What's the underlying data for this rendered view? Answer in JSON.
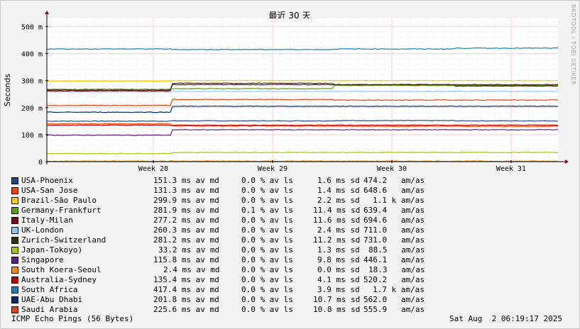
{
  "chart_data": {
    "type": "line",
    "title": "最近 30 天",
    "ylabel": "Seconds",
    "y_ticks": [
      {
        "value": 0,
        "label": "0"
      },
      {
        "value": 100,
        "label": "100 m"
      },
      {
        "value": 200,
        "label": "200 m"
      },
      {
        "value": 300,
        "label": "300 m"
      },
      {
        "value": 400,
        "label": "400 m"
      },
      {
        "value": 500,
        "label": "500 m"
      }
    ],
    "ylim": [
      0,
      530
    ],
    "x_ticks": [
      "Week 28",
      "Week 29",
      "Week 30",
      "Week 31"
    ],
    "grid": true,
    "series": [
      {
        "name": "USA-Phoenix",
        "color": "#1f4a8a",
        "levels": [
          150,
          151,
          152,
          151
        ],
        "median": "151.3 ms av md",
        "loss": "0.0 % av ls",
        "sd": "1.6 ms sd",
        "ratio": "474.2   am/as"
      },
      {
        "name": "USA-San Jose",
        "color": "#ff4000",
        "levels": [
          140,
          132,
          131,
          131
        ],
        "median": "131.3 ms av md",
        "loss": "0.0 % av ls",
        "sd": "1.4 ms sd",
        "ratio": "648.6   am/as"
      },
      {
        "name": "Brazil-São Paulo",
        "color": "#ffd000",
        "levels": [
          298,
          300,
          300,
          300
        ],
        "median": "299.9 ms av md",
        "loss": "0.0 % av ls",
        "sd": "2.2 ms sd",
        "ratio": "1.1 k am/as"
      },
      {
        "name": "Germany-Frankfurt",
        "color": "#58a000",
        "levels": [
          268,
          270,
          282,
          282
        ],
        "median": "281.9 ms av md",
        "loss": "0.1 % av ls",
        "sd": "11.4 ms sd",
        "ratio": "639.4   am/as"
      },
      {
        "name": "Italy-Milan",
        "color": "#800020",
        "levels": [
          262,
          285,
          285,
          280
        ],
        "median": "277.2 ms av md",
        "loss": "0.0 % av ls",
        "sd": "11.6 ms sd",
        "ratio": "694.6   am/as"
      },
      {
        "name": "UK-London",
        "color": "#8cc8ff",
        "levels": [
          258,
          260,
          260,
          260
        ],
        "median": "260.3 ms av md",
        "loss": "0.0 % av ls",
        "sd": "2.4 ms sd",
        "ratio": "711.0   am/as"
      },
      {
        "name": "Zurich-Switzerland",
        "color": "#303000",
        "levels": [
          265,
          290,
          285,
          285
        ],
        "median": "281.2 ms av md",
        "loss": "0.0 % av ls",
        "sd": "11.2 ms sd",
        "ratio": "731.0   am/as"
      },
      {
        "name": "Japan-Tokoyo)",
        "color": "#a8c800",
        "levels": [
          30,
          34,
          34,
          34
        ],
        "median": "33.2 ms av md",
        "loss": "0.0 % av ls",
        "sd": "1.3 ms sd",
        "ratio": "88.5   am/as"
      },
      {
        "name": "Singapore",
        "color": "#602080",
        "levels": [
          98,
          118,
          118,
          118
        ],
        "median": "115.8 ms av md",
        "loss": "0.0 % av ls",
        "sd": "9.8 ms sd",
        "ratio": "446.1   am/as"
      },
      {
        "name": "South Koera-Seoul",
        "color": "#ff8c00",
        "levels": [
          2,
          2,
          2,
          2
        ],
        "median": "2.4 ms av md",
        "loss": "0.0 % av ls",
        "sd": "0.0 ms sd",
        "ratio": "18.3   am/as"
      },
      {
        "name": "Australia-Sydney",
        "color": "#c00000",
        "levels": [
          135,
          135,
          135,
          135
        ],
        "median": "135.4 ms av md",
        "loss": "0.0 % av ls",
        "sd": "4.1 ms sd",
        "ratio": "520.2   am/as"
      },
      {
        "name": "South Africa",
        "color": "#1080c0",
        "levels": [
          417,
          415,
          417,
          420
        ],
        "median": "417.4 ms av md",
        "loss": "0.0 % av ls",
        "sd": "3.9 ms sd",
        "ratio": "1.7 k am/as"
      },
      {
        "name": "UAE-Abu Dhabi",
        "color": "#003070",
        "levels": [
          183,
          205,
          205,
          205
        ],
        "median": "201.8 ms av md",
        "loss": "0.0 % av ls",
        "sd": "10.7 ms sd",
        "ratio": "562.0   am/as"
      },
      {
        "name": "Saudi Arabia",
        "color": "#e84010",
        "levels": [
          208,
          230,
          228,
          228
        ],
        "median": "225.6 ms av md",
        "loss": "0.0 % av ls",
        "sd": "10.8 ms sd",
        "ratio": "555.9   am/as"
      }
    ]
  },
  "footer": {
    "left": "ICMP Echo Pings (56 Bytes)",
    "right": "Sat Aug  2 06:19:17 2025"
  },
  "side_label": "RRDTOOL / TOBI OETIKER"
}
